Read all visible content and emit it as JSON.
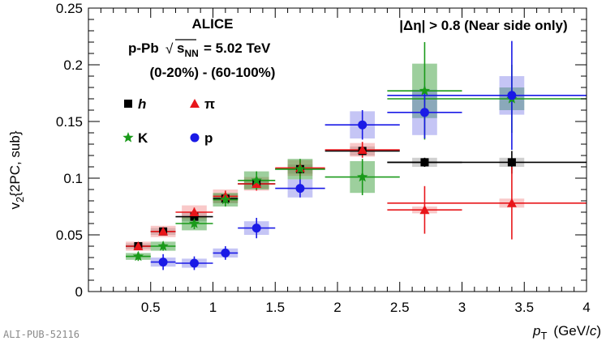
{
  "chart_data": {
    "type": "scatter",
    "xlabel_main": "p",
    "xlabel_sub": "T",
    "xlabel_unit": "(GeV/",
    "xlabel_unit_italic": "c",
    "xlabel_unit_close": ")",
    "ylabel_main": "v",
    "ylabel_sub": "2",
    "ylabel_rest": "{2PC, sub}",
    "xlim": [
      0,
      4
    ],
    "ylim": [
      0,
      0.25
    ],
    "x_ticks": [
      0.5,
      1,
      1.5,
      2,
      2.5,
      3,
      3.5,
      4
    ],
    "x_tick_labels": [
      "0.5",
      "1",
      "1.5",
      "2",
      "2.5",
      "3",
      "3.5",
      "4"
    ],
    "y_ticks": [
      0,
      0.05,
      0.1,
      0.15,
      0.2,
      0.25
    ],
    "y_tick_labels": [
      "0",
      "0.05",
      "0.1",
      "0.15",
      "0.2",
      "0.25"
    ],
    "grid": false,
    "legend_position": "top-left",
    "annotations": {
      "experiment": "ALICE",
      "system": "p-Pb",
      "energy_sqrt": "s",
      "energy_sub": "NN",
      "energy_value": "= 5.02 TeV",
      "centrality": "(0-20%) - (60-100%)",
      "eta_cut": "|Δη| > 0.8 (Near side only)"
    },
    "series": [
      {
        "name": "h",
        "color": "#000000",
        "marker": "square",
        "points": [
          {
            "x": 0.4,
            "y": 0.04,
            "xerr": 0.1,
            "yerr": 0.001,
            "syst": 0.0025
          },
          {
            "x": 0.6,
            "y": 0.053,
            "xerr": 0.1,
            "yerr": 0.001,
            "syst": 0.003
          },
          {
            "x": 0.85,
            "y": 0.066,
            "xerr": 0.15,
            "yerr": 0.002,
            "syst": 0.004
          },
          {
            "x": 1.1,
            "y": 0.082,
            "xerr": 0.1,
            "yerr": 0.002,
            "syst": 0.004
          },
          {
            "x": 1.35,
            "y": 0.095,
            "xerr": 0.15,
            "yerr": 0.002,
            "syst": 0.004
          },
          {
            "x": 1.7,
            "y": 0.108,
            "xerr": 0.2,
            "yerr": 0.002,
            "syst": 0.004
          },
          {
            "x": 2.2,
            "y": 0.124,
            "xerr": 0.3,
            "yerr": 0.003,
            "syst": 0.004
          },
          {
            "x": 2.7,
            "y": 0.114,
            "xerr": 0.3,
            "yerr": 0.004,
            "syst": 0.004
          },
          {
            "x": 3.4,
            "y": 0.114,
            "xerr": 1.0,
            "yerr": 0.01,
            "syst": 0.004
          }
        ]
      },
      {
        "name": "π",
        "color": "#e8161a",
        "marker": "triangle",
        "points": [
          {
            "x": 0.4,
            "y": 0.04,
            "xerr": 0.1,
            "yerr": 0.003,
            "syst": 0.004
          },
          {
            "x": 0.6,
            "y": 0.053,
            "xerr": 0.1,
            "yerr": 0.003,
            "syst": 0.005
          },
          {
            "x": 0.85,
            "y": 0.07,
            "xerr": 0.15,
            "yerr": 0.004,
            "syst": 0.006
          },
          {
            "x": 1.1,
            "y": 0.084,
            "xerr": 0.1,
            "yerr": 0.005,
            "syst": 0.006
          },
          {
            "x": 1.35,
            "y": 0.095,
            "xerr": 0.15,
            "yerr": 0.006,
            "syst": 0.006
          },
          {
            "x": 1.7,
            "y": 0.109,
            "xerr": 0.2,
            "yerr": 0.007,
            "syst": 0.007
          },
          {
            "x": 2.2,
            "y": 0.125,
            "xerr": 0.3,
            "yerr": 0.007,
            "syst": 0.006
          },
          {
            "x": 2.7,
            "y": 0.072,
            "xerr": 0.3,
            "yerr": 0.021,
            "syst": 0.003
          },
          {
            "x": 3.4,
            "y": 0.078,
            "xerr": 1.0,
            "yerr": 0.032,
            "syst": 0.004
          }
        ]
      },
      {
        "name": "K",
        "color": "#1a9a1a",
        "marker": "star",
        "points": [
          {
            "x": 0.4,
            "y": 0.031,
            "xerr": 0.1,
            "yerr": 0.004,
            "syst": 0.003
          },
          {
            "x": 0.6,
            "y": 0.04,
            "xerr": 0.1,
            "yerr": 0.004,
            "syst": 0.004
          },
          {
            "x": 0.85,
            "y": 0.06,
            "xerr": 0.15,
            "yerr": 0.005,
            "syst": 0.006
          },
          {
            "x": 1.1,
            "y": 0.081,
            "xerr": 0.1,
            "yerr": 0.006,
            "syst": 0.006
          },
          {
            "x": 1.35,
            "y": 0.098,
            "xerr": 0.15,
            "yerr": 0.008,
            "syst": 0.008
          },
          {
            "x": 1.7,
            "y": 0.108,
            "xerr": 0.2,
            "yerr": 0.009,
            "syst": 0.009
          },
          {
            "x": 2.2,
            "y": 0.101,
            "xerr": 0.3,
            "yerr": 0.016,
            "syst": 0.014
          },
          {
            "x": 2.7,
            "y": 0.177,
            "xerr": 0.3,
            "yerr": 0.043,
            "syst": 0.024
          },
          {
            "x": 3.4,
            "y": 0.17,
            "xerr": 1.0,
            "yerr": 0.03,
            "syst": 0.01
          }
        ]
      },
      {
        "name": "p",
        "color": "#1a1ae6",
        "marker": "circle",
        "points": [
          {
            "x": 0.6,
            "y": 0.026,
            "xerr": 0.1,
            "yerr": 0.007,
            "syst": 0.004
          },
          {
            "x": 0.85,
            "y": 0.025,
            "xerr": 0.15,
            "yerr": 0.006,
            "syst": 0.004
          },
          {
            "x": 1.1,
            "y": 0.034,
            "xerr": 0.1,
            "yerr": 0.006,
            "syst": 0.004
          },
          {
            "x": 1.35,
            "y": 0.056,
            "xerr": 0.15,
            "yerr": 0.009,
            "syst": 0.006
          },
          {
            "x": 1.7,
            "y": 0.091,
            "xerr": 0.2,
            "yerr": 0.008,
            "syst": 0.008
          },
          {
            "x": 2.2,
            "y": 0.147,
            "xerr": 0.3,
            "yerr": 0.013,
            "syst": 0.012
          },
          {
            "x": 2.7,
            "y": 0.158,
            "xerr": 0.3,
            "yerr": 0.023,
            "syst": 0.02
          },
          {
            "x": 3.4,
            "y": 0.173,
            "xerr": 1.0,
            "yerr": 0.048,
            "syst": 0.017
          }
        ]
      }
    ]
  },
  "footer": {
    "pub_id": "ALI-PUB-52116"
  }
}
